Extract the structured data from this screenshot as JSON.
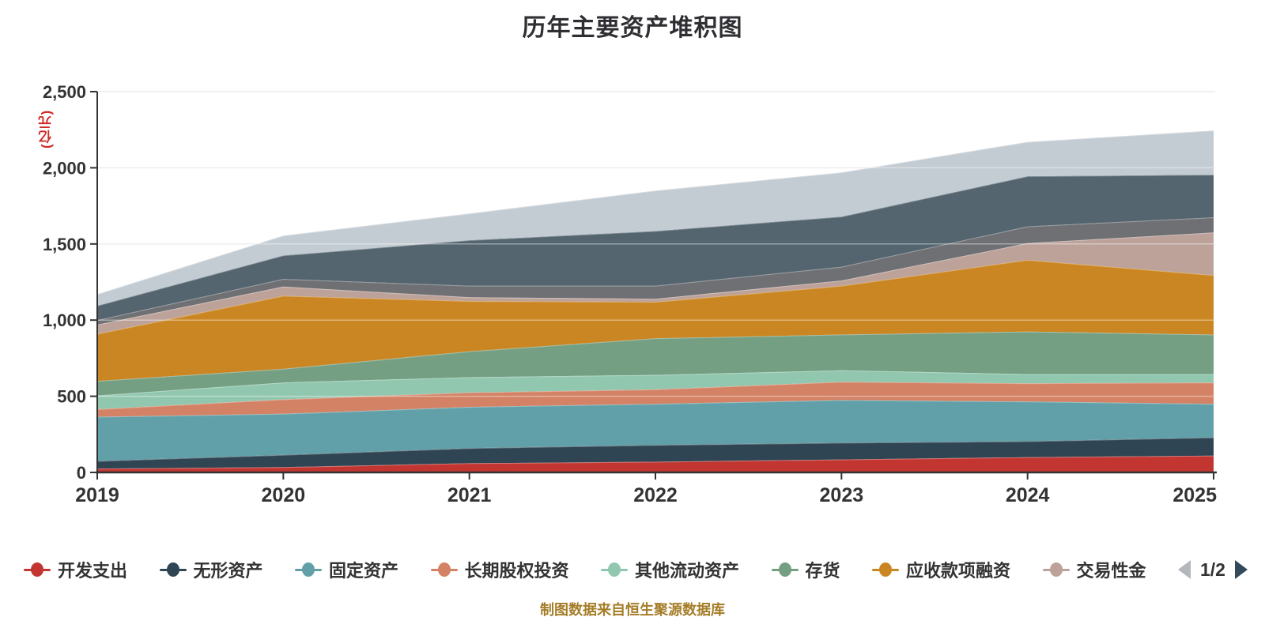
{
  "title": "历年主要资产堆积图",
  "footer": {
    "text": "制图数据来自恒生聚源数据库",
    "color": "#a57d28"
  },
  "y_axis": {
    "name": "(亿元)",
    "name_color": "#d02a2a",
    "ticks": [
      "0",
      "500",
      "1,000",
      "1,500",
      "2,000",
      "2,500"
    ],
    "tick_values": [
      0,
      500,
      1000,
      1500,
      2000,
      2500
    ],
    "max": 2500
  },
  "x_axis": {
    "labels": [
      "2019",
      "2020",
      "2021",
      "2022",
      "2023",
      "2024",
      "2025"
    ]
  },
  "legend": {
    "items": [
      {
        "label": "开发支出",
        "color": "#c23531"
      },
      {
        "label": "无形资产",
        "color": "#2f4554"
      },
      {
        "label": "固定资产",
        "color": "#61a0a8"
      },
      {
        "label": "长期股权投资",
        "color": "#d48265"
      },
      {
        "label": "其他流动资产",
        "color": "#91c7ae"
      },
      {
        "label": "存货",
        "color": "#749f83"
      },
      {
        "label": "应收款项融资",
        "color": "#ca8622"
      },
      {
        "label": "交易性金",
        "color": "#bda29a"
      }
    ],
    "pager": {
      "label": "1/2",
      "prev_color": "#b3b7bb",
      "next_color": "#34495a"
    }
  },
  "chart_data": {
    "type": "area",
    "stacked": true,
    "title": "历年主要资产堆积图",
    "xlabel": "",
    "ylabel": "(亿元)",
    "x": [
      2019,
      2020,
      2021,
      2022,
      2023,
      2024,
      2025
    ],
    "ylim": [
      0,
      2500
    ],
    "grid": true,
    "legend_position": "bottom",
    "series": [
      {
        "name": "开发支出",
        "color": "#c23531",
        "values": [
          25,
          35,
          60,
          70,
          85,
          100,
          110
        ]
      },
      {
        "name": "无形资产",
        "color": "#2f4554",
        "values": [
          50,
          80,
          100,
          110,
          110,
          105,
          120
        ]
      },
      {
        "name": "固定资产",
        "color": "#61a0a8",
        "values": [
          290,
          270,
          270,
          270,
          280,
          260,
          220
        ]
      },
      {
        "name": "长期股权投资",
        "color": "#d48265",
        "values": [
          50,
          95,
          95,
          95,
          120,
          120,
          140
        ]
      },
      {
        "name": "其他流动资产",
        "color": "#91c7ae",
        "values": [
          90,
          110,
          100,
          95,
          75,
          60,
          55
        ]
      },
      {
        "name": "存货",
        "color": "#749f83",
        "values": [
          95,
          90,
          170,
          240,
          235,
          280,
          260
        ]
      },
      {
        "name": "应收款项融资",
        "color": "#ca8622",
        "values": [
          310,
          480,
          330,
          240,
          320,
          470,
          390
        ]
      },
      {
        "name": "交易性金",
        "color": "#bda29a",
        "values": [
          60,
          60,
          25,
          20,
          35,
          110,
          280
        ]
      },
      {
        "name": "",
        "color": "#6e7074",
        "values": [
          30,
          50,
          75,
          85,
          90,
          110,
          100
        ]
      },
      {
        "name": "",
        "color": "#546570",
        "values": [
          95,
          155,
          300,
          360,
          330,
          330,
          280
        ]
      },
      {
        "name": "",
        "color": "#c4ccd3",
        "values": [
          75,
          130,
          175,
          265,
          290,
          225,
          290
        ]
      }
    ]
  }
}
